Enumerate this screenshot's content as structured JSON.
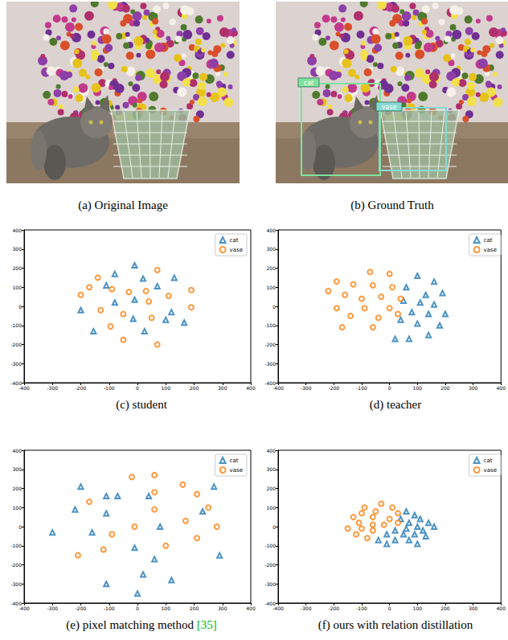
{
  "images": [
    {
      "caption": "(a) Original Image"
    },
    {
      "caption": "(b) Ground Truth",
      "boxes": [
        {
          "label": "cat",
          "color": "#7de3a0"
        },
        {
          "label": "vase",
          "color": "#86d9d2"
        }
      ]
    }
  ],
  "chart_data": [
    {
      "type": "scatter",
      "title": "(c) student",
      "xlim": [
        -400,
        400
      ],
      "ylim": [
        -400,
        400
      ],
      "xticks": [
        -400,
        -300,
        -200,
        -100,
        0,
        100,
        200,
        300,
        400
      ],
      "yticks": [
        -400,
        -300,
        -200,
        -100,
        0,
        100,
        200,
        300,
        400
      ],
      "grid": false,
      "legend": "upper right",
      "series": [
        {
          "name": "cat",
          "color": "#1f77b4",
          "marker": "triangle",
          "values": [
            [
              -10,
              215
            ],
            [
              -80,
              170
            ],
            [
              20,
              145
            ],
            [
              130,
              150
            ],
            [
              -110,
              110
            ],
            [
              70,
              105
            ],
            [
              -80,
              20
            ],
            [
              -10,
              35
            ],
            [
              -200,
              -20
            ],
            [
              -155,
              -130
            ],
            [
              -15,
              -65
            ],
            [
              120,
              -30
            ],
            [
              165,
              -85
            ],
            [
              25,
              -130
            ],
            [
              100,
              -70
            ]
          ]
        },
        {
          "name": "vase",
          "color": "#ff7f0e",
          "marker": "circle",
          "values": [
            [
              -140,
              150
            ],
            [
              70,
              190
            ],
            [
              -90,
              90
            ],
            [
              30,
              80
            ],
            [
              -200,
              60
            ],
            [
              -30,
              75
            ],
            [
              190,
              85
            ],
            [
              110,
              55
            ],
            [
              -50,
              -40
            ],
            [
              40,
              25
            ],
            [
              190,
              -5
            ],
            [
              -130,
              -20
            ],
            [
              50,
              -60
            ],
            [
              -95,
              -105
            ],
            [
              -50,
              -175
            ],
            [
              70,
              -200
            ],
            [
              -170,
              100
            ]
          ]
        }
      ]
    },
    {
      "type": "scatter",
      "title": "(d) teacher",
      "xlim": [
        -400,
        400
      ],
      "ylim": [
        -400,
        400
      ],
      "xticks": [
        -400,
        -300,
        -200,
        -100,
        0,
        100,
        200,
        300,
        400
      ],
      "yticks": [
        -400,
        -300,
        -200,
        -100,
        0,
        100,
        200,
        300,
        400
      ],
      "grid": false,
      "legend": "upper right",
      "series": [
        {
          "name": "cat",
          "color": "#1f77b4",
          "marker": "triangle",
          "values": [
            [
              100,
              160
            ],
            [
              160,
              130
            ],
            [
              60,
              100
            ],
            [
              130,
              60
            ],
            [
              190,
              70
            ],
            [
              50,
              30
            ],
            [
              110,
              20
            ],
            [
              160,
              10
            ],
            [
              80,
              -30
            ],
            [
              140,
              -40
            ],
            [
              200,
              -40
            ],
            [
              40,
              -70
            ],
            [
              100,
              -90
            ],
            [
              180,
              -100
            ],
            [
              20,
              -170
            ],
            [
              70,
              -170
            ],
            [
              140,
              -150
            ]
          ]
        },
        {
          "name": "vase",
          "color": "#ff7f0e",
          "marker": "circle",
          "values": [
            [
              -70,
              180
            ],
            [
              0,
              170
            ],
            [
              -190,
              130
            ],
            [
              -130,
              115
            ],
            [
              -60,
              110
            ],
            [
              -160,
              60
            ],
            [
              -30,
              50
            ],
            [
              40,
              40
            ],
            [
              -220,
              80
            ],
            [
              -100,
              40
            ],
            [
              -90,
              -10
            ],
            [
              0,
              -10
            ],
            [
              -190,
              -10
            ],
            [
              -140,
              -50
            ],
            [
              -40,
              -60
            ],
            [
              -60,
              -110
            ],
            [
              -170,
              -110
            ],
            [
              30,
              -40
            ],
            [
              10,
              100
            ]
          ]
        }
      ]
    },
    {
      "type": "scatter",
      "title": "(e) pixel matching method [35]",
      "xlim": [
        -400,
        400
      ],
      "ylim": [
        -400,
        400
      ],
      "xticks": [
        -400,
        -300,
        -200,
        -100,
        0,
        100,
        200,
        300,
        400
      ],
      "yticks": [
        -400,
        -300,
        -200,
        -100,
        0,
        100,
        200,
        300,
        400
      ],
      "grid": false,
      "legend": "upper right",
      "series": [
        {
          "name": "cat",
          "color": "#1f77b4",
          "marker": "triangle",
          "values": [
            [
              -200,
              210
            ],
            [
              270,
              210
            ],
            [
              -70,
              160
            ],
            [
              -110,
              160
            ],
            [
              40,
              160
            ],
            [
              -110,
              70
            ],
            [
              -220,
              90
            ],
            [
              -300,
              -30
            ],
            [
              -160,
              -30
            ],
            [
              -10,
              -110
            ],
            [
              80,
              0
            ],
            [
              60,
              -170
            ],
            [
              20,
              -250
            ],
            [
              120,
              -280
            ],
            [
              -110,
              -300
            ],
            [
              0,
              -350
            ],
            [
              290,
              -150
            ],
            [
              230,
              80
            ]
          ]
        },
        {
          "name": "vase",
          "color": "#ff7f0e",
          "marker": "circle",
          "values": [
            [
              -20,
              260
            ],
            [
              60,
              270
            ],
            [
              160,
              220
            ],
            [
              60,
              180
            ],
            [
              210,
              170
            ],
            [
              -170,
              130
            ],
            [
              250,
              100
            ],
            [
              60,
              90
            ],
            [
              170,
              30
            ],
            [
              210,
              -60
            ],
            [
              280,
              0
            ],
            [
              -90,
              -40
            ],
            [
              -10,
              0
            ],
            [
              100,
              -100
            ],
            [
              -210,
              -150
            ],
            [
              -120,
              -120
            ]
          ]
        }
      ]
    },
    {
      "type": "scatter",
      "title": "(f) ours with relation distillation",
      "xlim": [
        -400,
        400
      ],
      "ylim": [
        -400,
        400
      ],
      "xticks": [
        -400,
        -300,
        -200,
        -100,
        0,
        100,
        200,
        300,
        400
      ],
      "yticks": [
        -400,
        -300,
        -200,
        -100,
        0,
        100,
        200,
        300,
        400
      ],
      "grid": false,
      "legend": "upper right",
      "series": [
        {
          "name": "cat",
          "color": "#1f77b4",
          "marker": "triangle",
          "values": [
            [
              60,
              80
            ],
            [
              90,
              60
            ],
            [
              110,
              40
            ],
            [
              40,
              40
            ],
            [
              140,
              20
            ],
            [
              70,
              20
            ],
            [
              160,
              0
            ],
            [
              100,
              0
            ],
            [
              20,
              -20
            ],
            [
              60,
              -10
            ],
            [
              120,
              -20
            ],
            [
              -10,
              -40
            ],
            [
              50,
              -40
            ],
            [
              90,
              -40
            ],
            [
              130,
              -50
            ],
            [
              -40,
              -70
            ],
            [
              20,
              -70
            ],
            [
              70,
              -70
            ],
            [
              -10,
              -90
            ],
            [
              100,
              -90
            ]
          ]
        },
        {
          "name": "vase",
          "color": "#ff7f0e",
          "marker": "circle",
          "values": [
            [
              -30,
              120
            ],
            [
              -90,
              100
            ],
            [
              10,
              100
            ],
            [
              -50,
              80
            ],
            [
              30,
              70
            ],
            [
              -100,
              70
            ],
            [
              -60,
              50
            ],
            [
              0,
              40
            ],
            [
              -130,
              50
            ],
            [
              -110,
              20
            ],
            [
              -60,
              10
            ],
            [
              -20,
              10
            ],
            [
              30,
              20
            ],
            [
              -150,
              -10
            ],
            [
              -100,
              -10
            ],
            [
              -60,
              -20
            ],
            [
              -120,
              -40
            ],
            [
              -80,
              -60
            ]
          ]
        }
      ]
    }
  ]
}
